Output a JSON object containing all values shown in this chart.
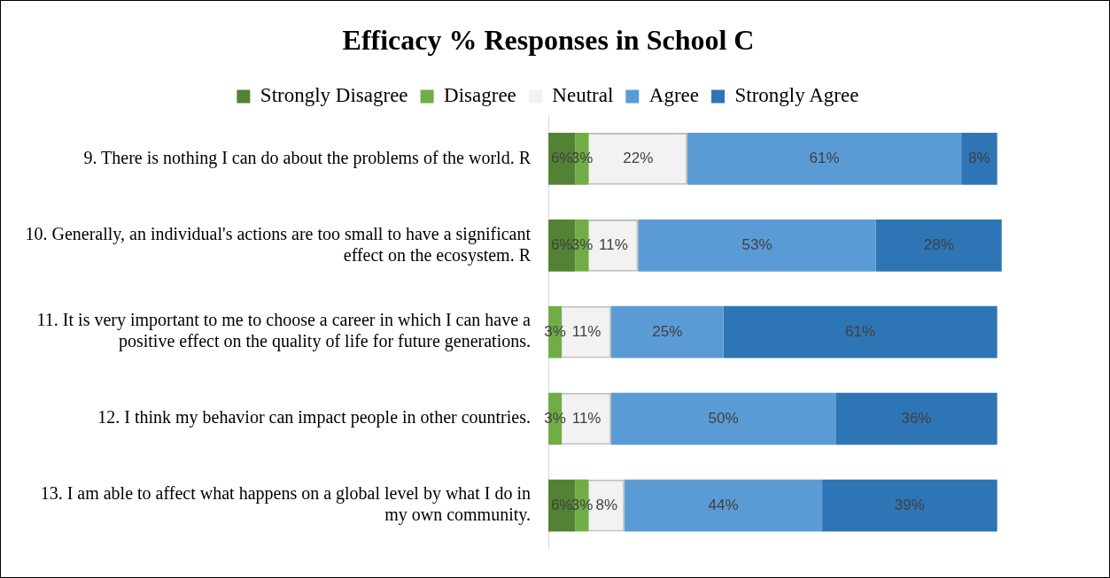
{
  "chart_data": {
    "type": "bar",
    "orientation": "horizontal",
    "stacked": true,
    "title": "Efficacy % Responses in School C",
    "categories": [
      "9. There is nothing I can do about the problems of the world. R",
      "10. Generally, an individual's actions are too small to have a significant effect on the ecosystem. R",
      "11. It is very important to me to choose a career in which I can have a positive effect on the quality of life for future generations.",
      "12. I think my behavior can impact people in other countries.",
      "13. I am able to affect what happens on a global level by what I do in my own community."
    ],
    "series": [
      {
        "name": "Strongly Disagree",
        "color": "#548235",
        "values": [
          6,
          6,
          0,
          0,
          6
        ],
        "value_labels": [
          "6%",
          "6%",
          null,
          null,
          "6%"
        ]
      },
      {
        "name": "Disagree",
        "color": "#70ad47",
        "values": [
          3,
          3,
          3,
          3,
          3
        ],
        "value_labels": [
          "3%",
          "3%",
          "3%",
          "3%",
          "3%"
        ]
      },
      {
        "name": "Neutral",
        "color": "#f2f2f2",
        "values": [
          22,
          11,
          11,
          11,
          8
        ],
        "value_labels": [
          "22%",
          "11%",
          "11%",
          "11%",
          "8%"
        ]
      },
      {
        "name": "Agree",
        "color": "#5b9bd5",
        "values": [
          61,
          53,
          25,
          50,
          44
        ],
        "value_labels": [
          "61%",
          "53%",
          "25%",
          "50%",
          "44%"
        ]
      },
      {
        "name": "Strongly Agree",
        "color": "#2e75b6",
        "values": [
          8,
          28,
          61,
          36,
          39
        ],
        "value_labels": [
          "8%",
          "28%",
          "61%",
          "36%",
          "39%"
        ]
      }
    ],
    "legend": "top",
    "grid": false,
    "tick_labels": "y"
  }
}
